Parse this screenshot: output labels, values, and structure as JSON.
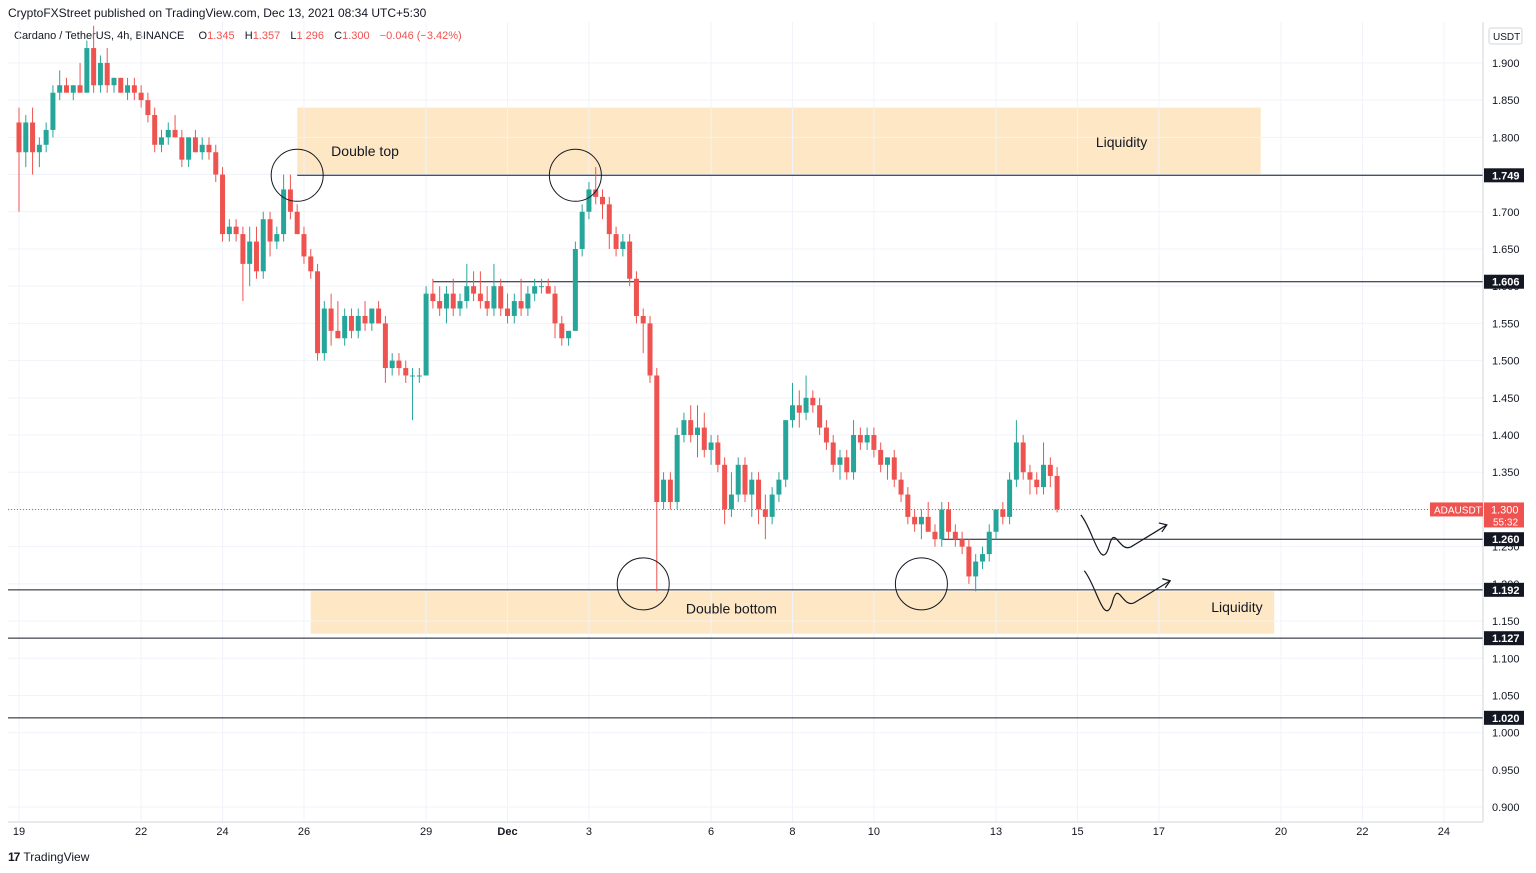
{
  "header": {
    "publisher": "CryptoFXStreet published on TradingView.com, Dec 13, 2021 08:34 UTC+5:30"
  },
  "legend": {
    "symbol": "Cardano / TetherUS, 4h, BINANCE",
    "o_label": "O",
    "o": "1.345",
    "h_label": "H",
    "h": "1.357",
    "l_label": "L",
    "l": "1.296",
    "c_label": "C",
    "c": "1.300",
    "change": "−0.046 (−3.42%)"
  },
  "footer": {
    "logo_mark": "17",
    "logo_text": "TradingView"
  },
  "colors": {
    "up": "#26a69a",
    "down": "#ef5350",
    "zone": "#fde7c4",
    "line": "#131722",
    "price_tag": "#ef5350"
  },
  "chart_data": {
    "type": "candlestick",
    "symbol": "ADAUSDT",
    "timeframe": "4h",
    "currency": "USDT",
    "ylim": [
      0.88,
      1.955
    ],
    "y_ticks": [
      "0.900",
      "0.950",
      "1.000",
      "1.050",
      "1.100",
      "1.150",
      "1.200",
      "1.250",
      "1.300",
      "1.350",
      "1.400",
      "1.450",
      "1.500",
      "1.550",
      "1.600",
      "1.650",
      "1.700",
      "1.750",
      "1.800",
      "1.850",
      "1.900"
    ],
    "x_tick_labels": [
      "19",
      "22",
      "24",
      "26",
      "29",
      "Dec",
      "3",
      "6",
      "8",
      "10",
      "13",
      "15",
      "17",
      "20",
      "22",
      "24"
    ],
    "x_tick_bars": [
      0,
      18,
      30,
      42,
      60,
      72,
      84,
      102,
      114,
      126,
      144,
      156,
      168,
      186,
      198,
      210
    ],
    "candles": [
      {
        "o": 1.82,
        "h": 1.84,
        "l": 1.7,
        "c": 1.78
      },
      {
        "o": 1.78,
        "h": 1.83,
        "l": 1.76,
        "c": 1.82
      },
      {
        "o": 1.82,
        "h": 1.84,
        "l": 1.75,
        "c": 1.78
      },
      {
        "o": 1.78,
        "h": 1.8,
        "l": 1.76,
        "c": 1.79
      },
      {
        "o": 1.79,
        "h": 1.82,
        "l": 1.78,
        "c": 1.81
      },
      {
        "o": 1.81,
        "h": 1.87,
        "l": 1.8,
        "c": 1.86
      },
      {
        "o": 1.86,
        "h": 1.89,
        "l": 1.85,
        "c": 1.87
      },
      {
        "o": 1.87,
        "h": 1.88,
        "l": 1.86,
        "c": 1.86
      },
      {
        "o": 1.86,
        "h": 1.87,
        "l": 1.85,
        "c": 1.87
      },
      {
        "o": 1.87,
        "h": 1.9,
        "l": 1.86,
        "c": 1.86
      },
      {
        "o": 1.86,
        "h": 1.93,
        "l": 1.86,
        "c": 1.92
      },
      {
        "o": 1.92,
        "h": 1.95,
        "l": 1.86,
        "c": 1.87
      },
      {
        "o": 1.87,
        "h": 1.91,
        "l": 1.86,
        "c": 1.9
      },
      {
        "o": 1.9,
        "h": 1.92,
        "l": 1.86,
        "c": 1.87
      },
      {
        "o": 1.87,
        "h": 1.88,
        "l": 1.86,
        "c": 1.88
      },
      {
        "o": 1.88,
        "h": 1.88,
        "l": 1.86,
        "c": 1.86
      },
      {
        "o": 1.86,
        "h": 1.88,
        "l": 1.85,
        "c": 1.87
      },
      {
        "o": 1.87,
        "h": 1.88,
        "l": 1.85,
        "c": 1.86
      },
      {
        "o": 1.86,
        "h": 1.87,
        "l": 1.84,
        "c": 1.85
      },
      {
        "o": 1.85,
        "h": 1.86,
        "l": 1.82,
        "c": 1.83
      },
      {
        "o": 1.83,
        "h": 1.84,
        "l": 1.78,
        "c": 1.79
      },
      {
        "o": 1.79,
        "h": 1.81,
        "l": 1.78,
        "c": 1.8
      },
      {
        "o": 1.8,
        "h": 1.82,
        "l": 1.79,
        "c": 1.81
      },
      {
        "o": 1.81,
        "h": 1.83,
        "l": 1.8,
        "c": 1.8
      },
      {
        "o": 1.8,
        "h": 1.81,
        "l": 1.76,
        "c": 1.77
      },
      {
        "o": 1.77,
        "h": 1.8,
        "l": 1.76,
        "c": 1.8
      },
      {
        "o": 1.8,
        "h": 1.81,
        "l": 1.78,
        "c": 1.78
      },
      {
        "o": 1.78,
        "h": 1.8,
        "l": 1.77,
        "c": 1.79
      },
      {
        "o": 1.79,
        "h": 1.8,
        "l": 1.77,
        "c": 1.78
      },
      {
        "o": 1.78,
        "h": 1.79,
        "l": 1.74,
        "c": 1.75
      },
      {
        "o": 1.75,
        "h": 1.76,
        "l": 1.66,
        "c": 1.67
      },
      {
        "o": 1.67,
        "h": 1.69,
        "l": 1.66,
        "c": 1.68
      },
      {
        "o": 1.68,
        "h": 1.69,
        "l": 1.66,
        "c": 1.67
      },
      {
        "o": 1.67,
        "h": 1.68,
        "l": 1.58,
        "c": 1.63
      },
      {
        "o": 1.63,
        "h": 1.68,
        "l": 1.6,
        "c": 1.66
      },
      {
        "o": 1.66,
        "h": 1.68,
        "l": 1.61,
        "c": 1.62
      },
      {
        "o": 1.62,
        "h": 1.7,
        "l": 1.61,
        "c": 1.69
      },
      {
        "o": 1.69,
        "h": 1.7,
        "l": 1.64,
        "c": 1.66
      },
      {
        "o": 1.66,
        "h": 1.68,
        "l": 1.65,
        "c": 1.67
      },
      {
        "o": 1.67,
        "h": 1.75,
        "l": 1.66,
        "c": 1.73
      },
      {
        "o": 1.73,
        "h": 1.75,
        "l": 1.69,
        "c": 1.7
      },
      {
        "o": 1.7,
        "h": 1.71,
        "l": 1.67,
        "c": 1.67
      },
      {
        "o": 1.67,
        "h": 1.68,
        "l": 1.63,
        "c": 1.64
      },
      {
        "o": 1.64,
        "h": 1.65,
        "l": 1.61,
        "c": 1.62
      },
      {
        "o": 1.62,
        "h": 1.63,
        "l": 1.5,
        "c": 1.51
      },
      {
        "o": 1.51,
        "h": 1.58,
        "l": 1.5,
        "c": 1.57
      },
      {
        "o": 1.57,
        "h": 1.59,
        "l": 1.52,
        "c": 1.54
      },
      {
        "o": 1.54,
        "h": 1.58,
        "l": 1.53,
        "c": 1.53
      },
      {
        "o": 1.53,
        "h": 1.57,
        "l": 1.52,
        "c": 1.56
      },
      {
        "o": 1.56,
        "h": 1.57,
        "l": 1.53,
        "c": 1.54
      },
      {
        "o": 1.54,
        "h": 1.57,
        "l": 1.53,
        "c": 1.56
      },
      {
        "o": 1.56,
        "h": 1.58,
        "l": 1.54,
        "c": 1.55
      },
      {
        "o": 1.55,
        "h": 1.57,
        "l": 1.54,
        "c": 1.57
      },
      {
        "o": 1.57,
        "h": 1.58,
        "l": 1.55,
        "c": 1.55
      },
      {
        "o": 1.55,
        "h": 1.56,
        "l": 1.47,
        "c": 1.49
      },
      {
        "o": 1.49,
        "h": 1.51,
        "l": 1.48,
        "c": 1.5
      },
      {
        "o": 1.5,
        "h": 1.51,
        "l": 1.48,
        "c": 1.49
      },
      {
        "o": 1.49,
        "h": 1.5,
        "l": 1.47,
        "c": 1.48
      },
      {
        "o": 1.48,
        "h": 1.49,
        "l": 1.42,
        "c": 1.48
      },
      {
        "o": 1.48,
        "h": 1.49,
        "l": 1.47,
        "c": 1.48
      },
      {
        "o": 1.48,
        "h": 1.6,
        "l": 1.48,
        "c": 1.59
      },
      {
        "o": 1.59,
        "h": 1.61,
        "l": 1.57,
        "c": 1.58
      },
      {
        "o": 1.58,
        "h": 1.6,
        "l": 1.56,
        "c": 1.57
      },
      {
        "o": 1.57,
        "h": 1.6,
        "l": 1.55,
        "c": 1.59
      },
      {
        "o": 1.59,
        "h": 1.61,
        "l": 1.56,
        "c": 1.57
      },
      {
        "o": 1.57,
        "h": 1.59,
        "l": 1.56,
        "c": 1.58
      },
      {
        "o": 1.58,
        "h": 1.63,
        "l": 1.57,
        "c": 1.6
      },
      {
        "o": 1.6,
        "h": 1.62,
        "l": 1.58,
        "c": 1.59
      },
      {
        "o": 1.59,
        "h": 1.62,
        "l": 1.57,
        "c": 1.58
      },
      {
        "o": 1.58,
        "h": 1.6,
        "l": 1.56,
        "c": 1.57
      },
      {
        "o": 1.57,
        "h": 1.63,
        "l": 1.56,
        "c": 1.6
      },
      {
        "o": 1.6,
        "h": 1.61,
        "l": 1.56,
        "c": 1.57
      },
      {
        "o": 1.57,
        "h": 1.59,
        "l": 1.55,
        "c": 1.56
      },
      {
        "o": 1.56,
        "h": 1.59,
        "l": 1.55,
        "c": 1.58
      },
      {
        "o": 1.58,
        "h": 1.61,
        "l": 1.56,
        "c": 1.57
      },
      {
        "o": 1.57,
        "h": 1.6,
        "l": 1.56,
        "c": 1.59
      },
      {
        "o": 1.59,
        "h": 1.61,
        "l": 1.58,
        "c": 1.6
      },
      {
        "o": 1.6,
        "h": 1.61,
        "l": 1.59,
        "c": 1.6
      },
      {
        "o": 1.6,
        "h": 1.61,
        "l": 1.59,
        "c": 1.59
      },
      {
        "o": 1.59,
        "h": 1.6,
        "l": 1.53,
        "c": 1.55
      },
      {
        "o": 1.55,
        "h": 1.56,
        "l": 1.52,
        "c": 1.53
      },
      {
        "o": 1.53,
        "h": 1.54,
        "l": 1.52,
        "c": 1.54
      },
      {
        "o": 1.54,
        "h": 1.66,
        "l": 1.54,
        "c": 1.65
      },
      {
        "o": 1.65,
        "h": 1.71,
        "l": 1.64,
        "c": 1.7
      },
      {
        "o": 1.7,
        "h": 1.74,
        "l": 1.69,
        "c": 1.73
      },
      {
        "o": 1.73,
        "h": 1.76,
        "l": 1.71,
        "c": 1.72
      },
      {
        "o": 1.72,
        "h": 1.73,
        "l": 1.69,
        "c": 1.71
      },
      {
        "o": 1.71,
        "h": 1.72,
        "l": 1.65,
        "c": 1.67
      },
      {
        "o": 1.67,
        "h": 1.68,
        "l": 1.64,
        "c": 1.65
      },
      {
        "o": 1.65,
        "h": 1.67,
        "l": 1.64,
        "c": 1.66
      },
      {
        "o": 1.66,
        "h": 1.67,
        "l": 1.6,
        "c": 1.61
      },
      {
        "o": 1.61,
        "h": 1.62,
        "l": 1.55,
        "c": 1.56
      },
      {
        "o": 1.56,
        "h": 1.57,
        "l": 1.51,
        "c": 1.55
      },
      {
        "o": 1.55,
        "h": 1.56,
        "l": 1.47,
        "c": 1.48
      },
      {
        "o": 1.48,
        "h": 1.49,
        "l": 1.19,
        "c": 1.31
      },
      {
        "o": 1.31,
        "h": 1.35,
        "l": 1.3,
        "c": 1.34
      },
      {
        "o": 1.34,
        "h": 1.35,
        "l": 1.3,
        "c": 1.31
      },
      {
        "o": 1.31,
        "h": 1.41,
        "l": 1.3,
        "c": 1.4
      },
      {
        "o": 1.4,
        "h": 1.43,
        "l": 1.39,
        "c": 1.42
      },
      {
        "o": 1.42,
        "h": 1.44,
        "l": 1.39,
        "c": 1.4
      },
      {
        "o": 1.4,
        "h": 1.44,
        "l": 1.37,
        "c": 1.41
      },
      {
        "o": 1.41,
        "h": 1.43,
        "l": 1.37,
        "c": 1.38
      },
      {
        "o": 1.38,
        "h": 1.4,
        "l": 1.36,
        "c": 1.39
      },
      {
        "o": 1.39,
        "h": 1.4,
        "l": 1.35,
        "c": 1.36
      },
      {
        "o": 1.36,
        "h": 1.37,
        "l": 1.28,
        "c": 1.3
      },
      {
        "o": 1.3,
        "h": 1.35,
        "l": 1.29,
        "c": 1.32
      },
      {
        "o": 1.32,
        "h": 1.37,
        "l": 1.31,
        "c": 1.36
      },
      {
        "o": 1.36,
        "h": 1.37,
        "l": 1.31,
        "c": 1.32
      },
      {
        "o": 1.32,
        "h": 1.35,
        "l": 1.29,
        "c": 1.34
      },
      {
        "o": 1.34,
        "h": 1.35,
        "l": 1.28,
        "c": 1.3
      },
      {
        "o": 1.3,
        "h": 1.32,
        "l": 1.26,
        "c": 1.29
      },
      {
        "o": 1.29,
        "h": 1.33,
        "l": 1.28,
        "c": 1.32
      },
      {
        "o": 1.32,
        "h": 1.35,
        "l": 1.31,
        "c": 1.34
      },
      {
        "o": 1.34,
        "h": 1.42,
        "l": 1.33,
        "c": 1.42
      },
      {
        "o": 1.42,
        "h": 1.47,
        "l": 1.41,
        "c": 1.44
      },
      {
        "o": 1.44,
        "h": 1.46,
        "l": 1.41,
        "c": 1.43
      },
      {
        "o": 1.43,
        "h": 1.48,
        "l": 1.42,
        "c": 1.45
      },
      {
        "o": 1.45,
        "h": 1.46,
        "l": 1.43,
        "c": 1.44
      },
      {
        "o": 1.44,
        "h": 1.45,
        "l": 1.4,
        "c": 1.41
      },
      {
        "o": 1.41,
        "h": 1.42,
        "l": 1.38,
        "c": 1.39
      },
      {
        "o": 1.39,
        "h": 1.4,
        "l": 1.35,
        "c": 1.36
      },
      {
        "o": 1.36,
        "h": 1.38,
        "l": 1.34,
        "c": 1.37
      },
      {
        "o": 1.37,
        "h": 1.38,
        "l": 1.34,
        "c": 1.35
      },
      {
        "o": 1.35,
        "h": 1.42,
        "l": 1.34,
        "c": 1.4
      },
      {
        "o": 1.4,
        "h": 1.41,
        "l": 1.38,
        "c": 1.39
      },
      {
        "o": 1.39,
        "h": 1.41,
        "l": 1.38,
        "c": 1.4
      },
      {
        "o": 1.4,
        "h": 1.41,
        "l": 1.37,
        "c": 1.38
      },
      {
        "o": 1.38,
        "h": 1.39,
        "l": 1.35,
        "c": 1.36
      },
      {
        "o": 1.36,
        "h": 1.37,
        "l": 1.34,
        "c": 1.37
      },
      {
        "o": 1.37,
        "h": 1.38,
        "l": 1.33,
        "c": 1.34
      },
      {
        "o": 1.34,
        "h": 1.35,
        "l": 1.31,
        "c": 1.32
      },
      {
        "o": 1.32,
        "h": 1.33,
        "l": 1.28,
        "c": 1.29
      },
      {
        "o": 1.29,
        "h": 1.3,
        "l": 1.27,
        "c": 1.28
      },
      {
        "o": 1.28,
        "h": 1.3,
        "l": 1.26,
        "c": 1.29
      },
      {
        "o": 1.29,
        "h": 1.31,
        "l": 1.28,
        "c": 1.27
      },
      {
        "o": 1.27,
        "h": 1.28,
        "l": 1.25,
        "c": 1.26
      },
      {
        "o": 1.26,
        "h": 1.31,
        "l": 1.25,
        "c": 1.3
      },
      {
        "o": 1.3,
        "h": 1.31,
        "l": 1.26,
        "c": 1.27
      },
      {
        "o": 1.27,
        "h": 1.28,
        "l": 1.25,
        "c": 1.26
      },
      {
        "o": 1.26,
        "h": 1.27,
        "l": 1.24,
        "c": 1.25
      },
      {
        "o": 1.25,
        "h": 1.26,
        "l": 1.2,
        "c": 1.21
      },
      {
        "o": 1.21,
        "h": 1.24,
        "l": 1.19,
        "c": 1.23
      },
      {
        "o": 1.23,
        "h": 1.25,
        "l": 1.22,
        "c": 1.24
      },
      {
        "o": 1.24,
        "h": 1.28,
        "l": 1.23,
        "c": 1.27
      },
      {
        "o": 1.27,
        "h": 1.3,
        "l": 1.26,
        "c": 1.3
      },
      {
        "o": 1.3,
        "h": 1.31,
        "l": 1.28,
        "c": 1.29
      },
      {
        "o": 1.29,
        "h": 1.35,
        "l": 1.28,
        "c": 1.34
      },
      {
        "o": 1.34,
        "h": 1.42,
        "l": 1.33,
        "c": 1.39
      },
      {
        "o": 1.39,
        "h": 1.4,
        "l": 1.34,
        "c": 1.35
      },
      {
        "o": 1.35,
        "h": 1.36,
        "l": 1.32,
        "c": 1.34
      },
      {
        "o": 1.34,
        "h": 1.35,
        "l": 1.32,
        "c": 1.33
      },
      {
        "o": 1.33,
        "h": 1.39,
        "l": 1.32,
        "c": 1.36
      },
      {
        "o": 1.36,
        "h": 1.37,
        "l": 1.33,
        "c": 1.345
      },
      {
        "o": 1.345,
        "h": 1.357,
        "l": 1.296,
        "c": 1.3
      }
    ],
    "horizontal_levels": [
      {
        "price": 1.749,
        "label": "1.749"
      },
      {
        "price": 1.606,
        "label": "1.606"
      },
      {
        "price": 1.26,
        "label": "1.260"
      },
      {
        "price": 1.192,
        "label": "1.192"
      },
      {
        "price": 1.127,
        "label": "1.127"
      },
      {
        "price": 1.02,
        "label": "1.020"
      }
    ],
    "zones": [
      {
        "label": "Liquidity",
        "from": 1.75,
        "to": 1.84
      },
      {
        "label": "Liquidity",
        "from": 1.133,
        "to": 1.19
      }
    ],
    "annotations": [
      "Double top",
      "Double bottom",
      "Liquidity",
      "Liquidity"
    ],
    "last_price": {
      "symbol": "ADAUSDT",
      "price": "1.300",
      "countdown": "55:32"
    }
  }
}
